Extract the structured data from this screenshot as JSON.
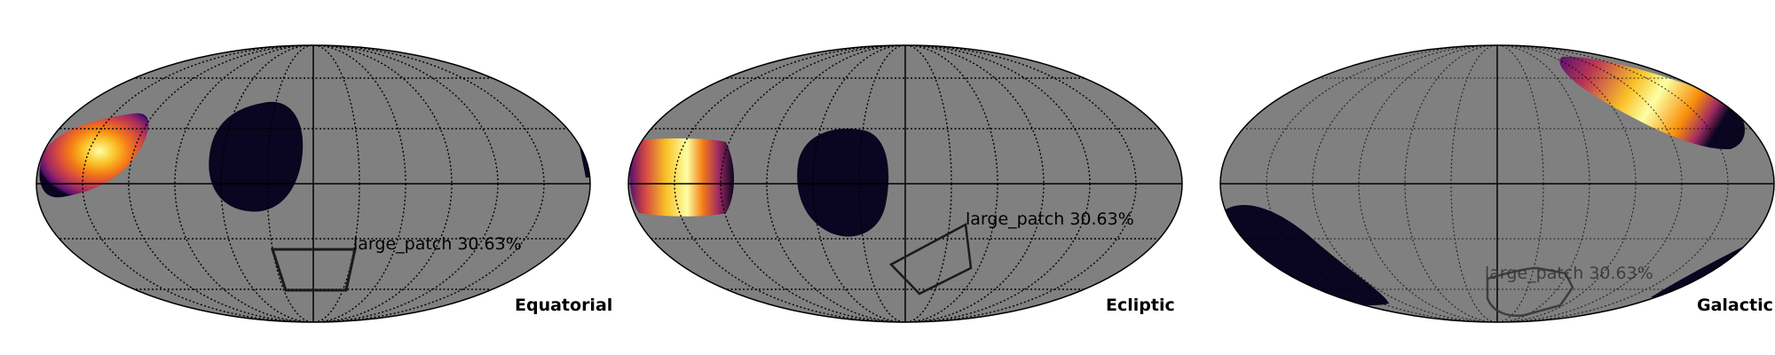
{
  "colors": {
    "background": "#808080",
    "outline": "#000000",
    "dark_patch": "#0a0520",
    "heat_hot": "#fcffa4",
    "heat_mid": "#f98e09",
    "heat_low": "#bc3754",
    "heat_cold": "#57106e",
    "heat_edge": "#0a0520"
  },
  "panels": [
    {
      "frame_label": "Equatorial",
      "patch_label": "large_patch 30.63%"
    },
    {
      "frame_label": "Ecliptic",
      "patch_label": "large_patch 30.63%"
    },
    {
      "frame_label": "Galactic",
      "patch_label": "large_patch 30.63%"
    }
  ]
}
